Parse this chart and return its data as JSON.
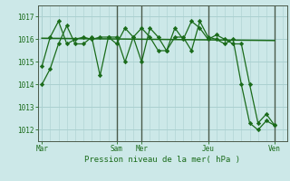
{
  "background_color": "#cce8e8",
  "grid_color": "#aad0d0",
  "line_color": "#1a6b1a",
  "marker_color": "#1a6b1a",
  "title": "Pression niveau de la mer( hPa )",
  "ylim": [
    1011.5,
    1017.5
  ],
  "yticks": [
    1012,
    1013,
    1014,
    1015,
    1016,
    1017
  ],
  "x_day_labels": [
    "Mar",
    "Sam",
    "Mer",
    "Jeu",
    "Ven"
  ],
  "x_day_positions": [
    0,
    9,
    12,
    20,
    28
  ],
  "xlim": [
    -0.5,
    29.5
  ],
  "vline_positions": [
    9,
    12,
    20,
    28
  ],
  "vline_color": "#4a5a4a",
  "series1_x": [
    0,
    1,
    2,
    3,
    4,
    5,
    6,
    7,
    8,
    9,
    10,
    11,
    12,
    13,
    14,
    15,
    16,
    17,
    18,
    19,
    20,
    21,
    22,
    23,
    24,
    25,
    26,
    27,
    28
  ],
  "series1_y": [
    1014.8,
    1016.1,
    1016.8,
    1015.8,
    1016.0,
    1016.1,
    1016.0,
    1016.1,
    1016.1,
    1015.8,
    1016.5,
    1016.1,
    1015.0,
    1016.5,
    1016.1,
    1015.5,
    1016.1,
    1016.1,
    1015.5,
    1016.8,
    1016.1,
    1016.0,
    1015.8,
    1016.0,
    1014.0,
    1012.3,
    1012.0,
    1012.4,
    1012.2
  ],
  "series2_x": [
    0,
    1,
    2,
    3,
    4,
    5,
    6,
    7,
    8,
    9,
    10,
    11,
    12,
    13,
    14,
    15,
    16,
    17,
    18,
    19,
    20,
    21,
    22,
    23,
    24,
    25,
    26,
    27,
    28
  ],
  "series2_y": [
    1014.0,
    1014.7,
    1015.8,
    1016.6,
    1015.8,
    1015.8,
    1016.1,
    1014.4,
    1016.1,
    1016.1,
    1015.0,
    1016.1,
    1016.5,
    1016.1,
    1015.5,
    1015.5,
    1016.5,
    1016.0,
    1016.8,
    1016.5,
    1016.0,
    1016.2,
    1016.0,
    1015.8,
    1015.8,
    1014.0,
    1012.3,
    1012.7,
    1012.2
  ],
  "trend_x": [
    0,
    28
  ],
  "trend_y": [
    1016.05,
    1015.95
  ],
  "figsize": [
    3.2,
    2.0
  ],
  "dpi": 100
}
